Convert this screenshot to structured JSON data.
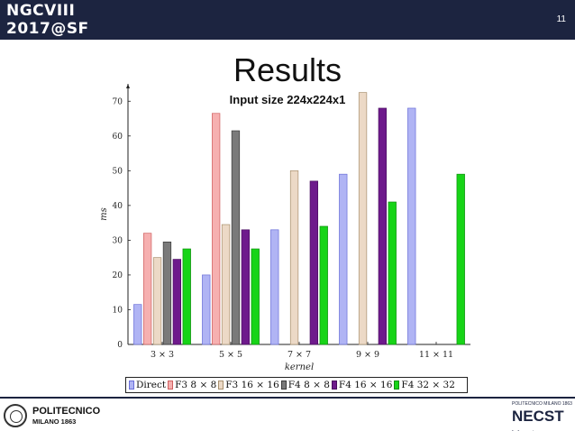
{
  "header": {
    "brand_line1": "NGCVIII",
    "brand_line2": "2017@SF",
    "page_number": "11"
  },
  "slide": {
    "title": "Results",
    "subtitle": "Input size 224x224x1"
  },
  "footer": {
    "left_logo": {
      "line1": "POLITECNICO",
      "line2": "MILANO 1863"
    },
    "right_logo": {
      "line1": "POLITECNICO MILANO 1863",
      "line2": "NECST",
      "line3": "laboratory"
    }
  },
  "colors": {
    "header_bg": "#1c2440",
    "axis": "#222222"
  },
  "chart_data": {
    "type": "bar",
    "title": "",
    "xlabel": "kernel",
    "ylabel": "ms",
    "ylim": [
      0,
      75
    ],
    "yticks": [
      0,
      10,
      20,
      30,
      40,
      50,
      60,
      70
    ],
    "categories": [
      "3 × 3",
      "5 × 5",
      "7 × 7",
      "9 × 9",
      "11 × 11"
    ],
    "grid": false,
    "legend_position": "bottom",
    "series": [
      {
        "name": "Direct",
        "color": "#b0b4f4",
        "stroke": "#6a6ed8",
        "values": [
          11.5,
          20,
          33,
          49,
          68
        ]
      },
      {
        "name": "F3 8 × 8",
        "color": "#f6b0b0",
        "stroke": "#d06060",
        "values": [
          32,
          66.5,
          null,
          null,
          null
        ]
      },
      {
        "name": "F3 16 × 16",
        "color": "#ecd9c6",
        "stroke": "#a8906e",
        "values": [
          25,
          34.5,
          50,
          72.5,
          null
        ]
      },
      {
        "name": "F4 8 × 8",
        "color": "#7a7a7a",
        "stroke": "#3a3a3a",
        "values": [
          29.5,
          61.5,
          null,
          null,
          null
        ]
      },
      {
        "name": "F4 16 × 16",
        "color": "#6e1a8c",
        "stroke": "#4a0d60",
        "values": [
          24.5,
          33,
          47,
          68,
          null
        ]
      },
      {
        "name": "F4 32 × 32",
        "color": "#17d417",
        "stroke": "#0e8e0e",
        "values": [
          27.5,
          27.5,
          34,
          41,
          49
        ]
      }
    ]
  }
}
